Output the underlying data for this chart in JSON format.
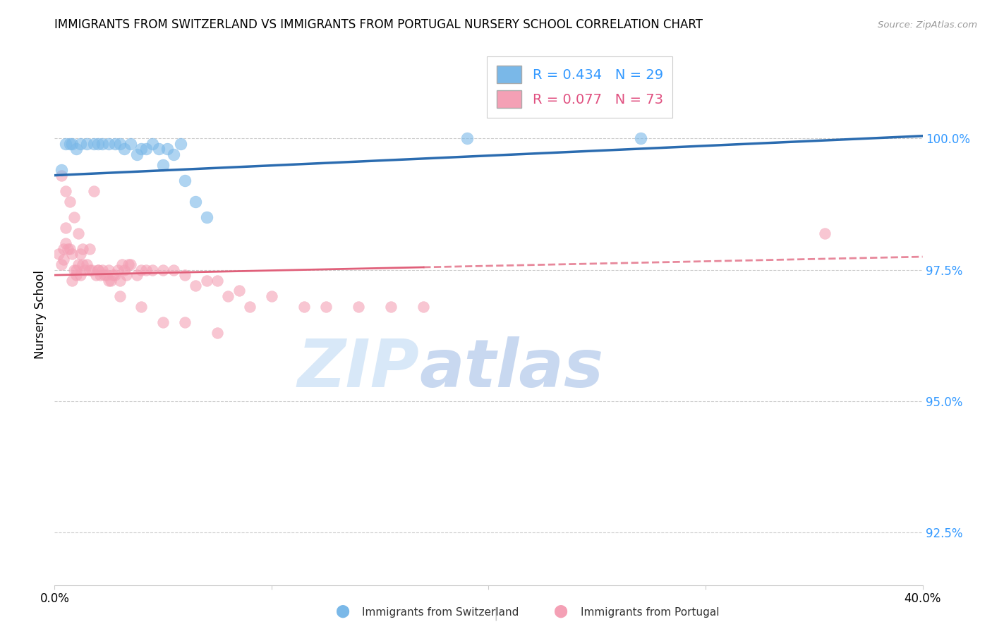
{
  "title": "IMMIGRANTS FROM SWITZERLAND VS IMMIGRANTS FROM PORTUGAL NURSERY SCHOOL CORRELATION CHART",
  "source": "Source: ZipAtlas.com",
  "ylabel": "Nursery School",
  "ytick_labels": [
    "92.5%",
    "95.0%",
    "97.5%",
    "100.0%"
  ],
  "ytick_values": [
    92.5,
    95.0,
    97.5,
    100.0
  ],
  "xmin": 0.0,
  "xmax": 40.0,
  "ymin": 91.5,
  "ymax": 101.8,
  "legend_blue_r": "R = 0.434",
  "legend_blue_n": "N = 29",
  "legend_pink_r": "R = 0.077",
  "legend_pink_n": "N = 73",
  "blue_color": "#7ab8e8",
  "pink_color": "#f4a0b5",
  "blue_line_color": "#2b6cb0",
  "pink_line_color": "#e0607a",
  "watermark_zip": "ZIP",
  "watermark_atlas": "atlas",
  "watermark_color_zip": "#d8e8f8",
  "watermark_color_atlas": "#c8d8f0",
  "blue_scatter_x": [
    0.3,
    0.5,
    0.7,
    0.8,
    1.0,
    1.2,
    1.5,
    1.8,
    2.0,
    2.2,
    2.5,
    2.8,
    3.0,
    3.2,
    3.5,
    3.8,
    4.0,
    4.2,
    4.5,
    4.8,
    5.0,
    5.2,
    5.5,
    5.8,
    6.0,
    6.5,
    7.0,
    19.0,
    27.0
  ],
  "blue_scatter_y": [
    99.4,
    99.9,
    99.9,
    99.9,
    99.8,
    99.9,
    99.9,
    99.9,
    99.9,
    99.9,
    99.9,
    99.9,
    99.9,
    99.8,
    99.9,
    99.7,
    99.8,
    99.8,
    99.9,
    99.8,
    99.5,
    99.8,
    99.7,
    99.9,
    99.2,
    98.8,
    98.5,
    100.0,
    100.0
  ],
  "pink_scatter_x": [
    0.2,
    0.3,
    0.4,
    0.4,
    0.5,
    0.5,
    0.6,
    0.7,
    0.8,
    0.8,
    0.9,
    1.0,
    1.0,
    1.1,
    1.2,
    1.2,
    1.3,
    1.4,
    1.5,
    1.6,
    1.7,
    1.8,
    1.9,
    2.0,
    2.1,
    2.2,
    2.3,
    2.4,
    2.5,
    2.6,
    2.7,
    2.8,
    2.9,
    3.0,
    3.1,
    3.2,
    3.3,
    3.4,
    3.5,
    3.8,
    4.0,
    4.2,
    4.5,
    5.0,
    5.5,
    6.0,
    6.5,
    7.0,
    7.5,
    8.0,
    8.5,
    9.0,
    10.0,
    11.5,
    12.5,
    14.0,
    15.5,
    17.0,
    0.3,
    0.5,
    0.7,
    0.9,
    1.1,
    1.3,
    1.6,
    2.0,
    2.5,
    3.0,
    4.0,
    5.0,
    6.0,
    7.5,
    35.5
  ],
  "pink_scatter_y": [
    97.8,
    97.6,
    97.7,
    97.9,
    98.0,
    98.3,
    97.9,
    97.9,
    97.8,
    97.3,
    97.5,
    97.4,
    97.5,
    97.6,
    97.4,
    97.8,
    97.6,
    97.5,
    97.6,
    97.9,
    97.5,
    99.0,
    97.4,
    97.5,
    97.4,
    97.5,
    97.4,
    97.4,
    97.5,
    97.3,
    97.4,
    97.4,
    97.5,
    97.3,
    97.6,
    97.5,
    97.4,
    97.6,
    97.6,
    97.4,
    97.5,
    97.5,
    97.5,
    97.5,
    97.5,
    97.4,
    97.2,
    97.3,
    97.3,
    97.0,
    97.1,
    96.8,
    97.0,
    96.8,
    96.8,
    96.8,
    96.8,
    96.8,
    99.3,
    99.0,
    98.8,
    98.5,
    98.2,
    97.9,
    97.5,
    97.5,
    97.3,
    97.0,
    96.8,
    96.5,
    96.5,
    96.3,
    98.2
  ],
  "blue_line_x0": 0.0,
  "blue_line_y0": 99.3,
  "blue_line_x1": 40.0,
  "blue_line_y1": 100.05,
  "pink_line_x0": 0.0,
  "pink_line_y0": 97.4,
  "pink_line_x1": 17.0,
  "pink_line_y1": 97.55,
  "pink_dash_x0": 17.0,
  "pink_dash_y0": 97.55,
  "pink_dash_x1": 40.0,
  "pink_dash_y1": 97.75
}
